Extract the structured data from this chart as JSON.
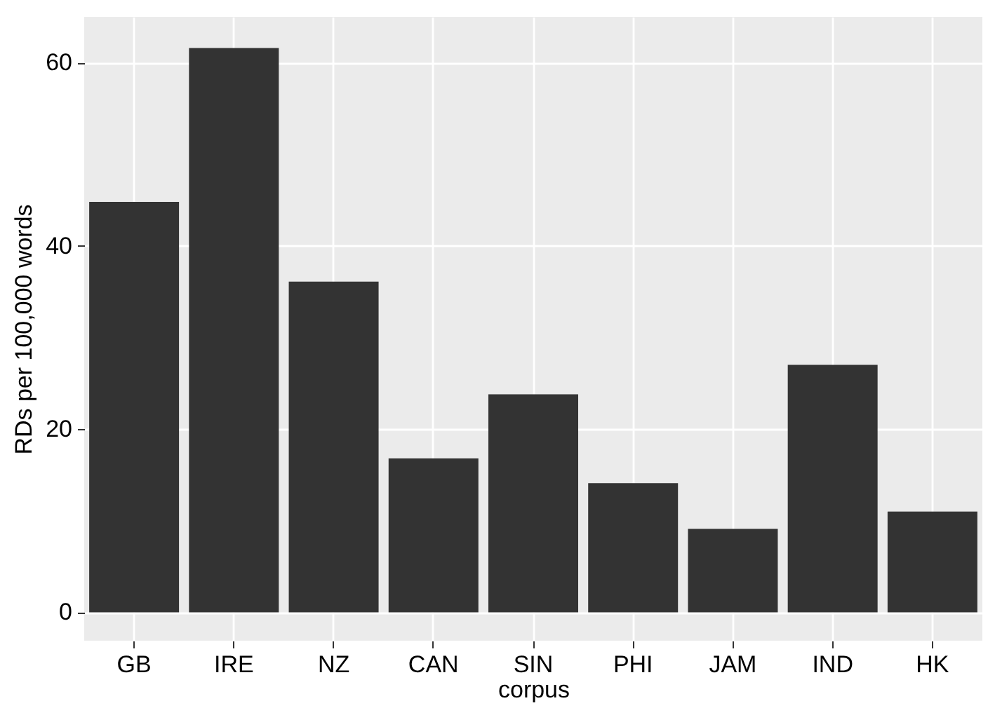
{
  "chart_data": {
    "type": "bar",
    "xlabel": "corpus",
    "ylabel": "RDs per 100,000 words",
    "categories": [
      "GB",
      "IRE",
      "NZ",
      "CAN",
      "SIN",
      "PHI",
      "JAM",
      "IND",
      "HK"
    ],
    "values": [
      44.8,
      61.6,
      36.1,
      16.8,
      23.8,
      14.1,
      9.1,
      27.0,
      11.0
    ],
    "color": "#333333",
    "ylim": [
      -3.1,
      65.0
    ],
    "yticks": [
      0,
      20,
      40,
      60
    ],
    "grid": true
  }
}
